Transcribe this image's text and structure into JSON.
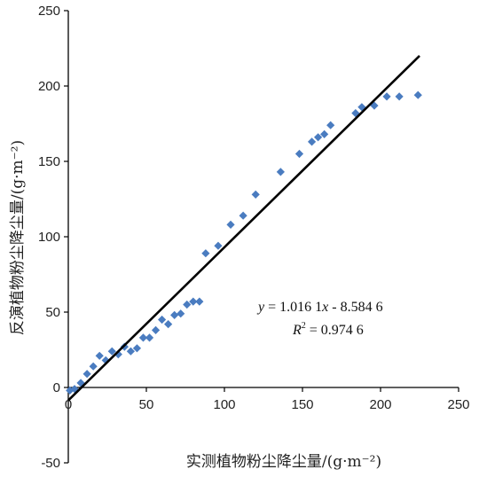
{
  "chart_data": {
    "type": "scatter",
    "xlabel": "实测植物粉尘降尘量/(g·m⁻²)",
    "ylabel": "反演植物粉尘降尘量/(g·m⁻²)",
    "xlim": [
      0,
      250
    ],
    "ylim": [
      -50,
      250
    ],
    "x_ticks": [
      "0",
      "50",
      "100",
      "150",
      "200",
      "250"
    ],
    "y_ticks": [
      "-50",
      "0",
      "50",
      "100",
      "150",
      "200",
      "250"
    ],
    "marker_color": "#4a7cc0",
    "line_color": "#000000",
    "grid": false,
    "points": [
      {
        "x": 1,
        "y": -2
      },
      {
        "x": 4,
        "y": -1
      },
      {
        "x": 8,
        "y": 3
      },
      {
        "x": 12,
        "y": 9
      },
      {
        "x": 16,
        "y": 14
      },
      {
        "x": 20,
        "y": 21
      },
      {
        "x": 24,
        "y": 18
      },
      {
        "x": 28,
        "y": 24
      },
      {
        "x": 32,
        "y": 22
      },
      {
        "x": 36,
        "y": 27
      },
      {
        "x": 40,
        "y": 24
      },
      {
        "x": 44,
        "y": 26
      },
      {
        "x": 48,
        "y": 33
      },
      {
        "x": 52,
        "y": 33
      },
      {
        "x": 56,
        "y": 38
      },
      {
        "x": 60,
        "y": 45
      },
      {
        "x": 64,
        "y": 42
      },
      {
        "x": 68,
        "y": 48
      },
      {
        "x": 72,
        "y": 49
      },
      {
        "x": 76,
        "y": 55
      },
      {
        "x": 80,
        "y": 57
      },
      {
        "x": 84,
        "y": 57
      },
      {
        "x": 88,
        "y": 89
      },
      {
        "x": 96,
        "y": 94
      },
      {
        "x": 104,
        "y": 108
      },
      {
        "x": 112,
        "y": 114
      },
      {
        "x": 120,
        "y": 128
      },
      {
        "x": 136,
        "y": 143
      },
      {
        "x": 148,
        "y": 155
      },
      {
        "x": 156,
        "y": 163
      },
      {
        "x": 160,
        "y": 166
      },
      {
        "x": 164,
        "y": 168
      },
      {
        "x": 168,
        "y": 174
      },
      {
        "x": 184,
        "y": 182
      },
      {
        "x": 188,
        "y": 186
      },
      {
        "x": 196,
        "y": 187
      },
      {
        "x": 204,
        "y": 193
      },
      {
        "x": 212,
        "y": 193
      },
      {
        "x": 224,
        "y": 194
      }
    ],
    "fit": {
      "slope": 1.0161,
      "intercept": -8.5846,
      "x_range": [
        0,
        225
      ]
    },
    "equation_text": {
      "y_var": "y",
      "eq_rest": " = 1.016 1",
      "x_var": "x",
      "eq_tail": " - 8.584 6",
      "r_var": "R",
      "r_sup": "2",
      "r_tail": " = 0.974 6"
    }
  }
}
